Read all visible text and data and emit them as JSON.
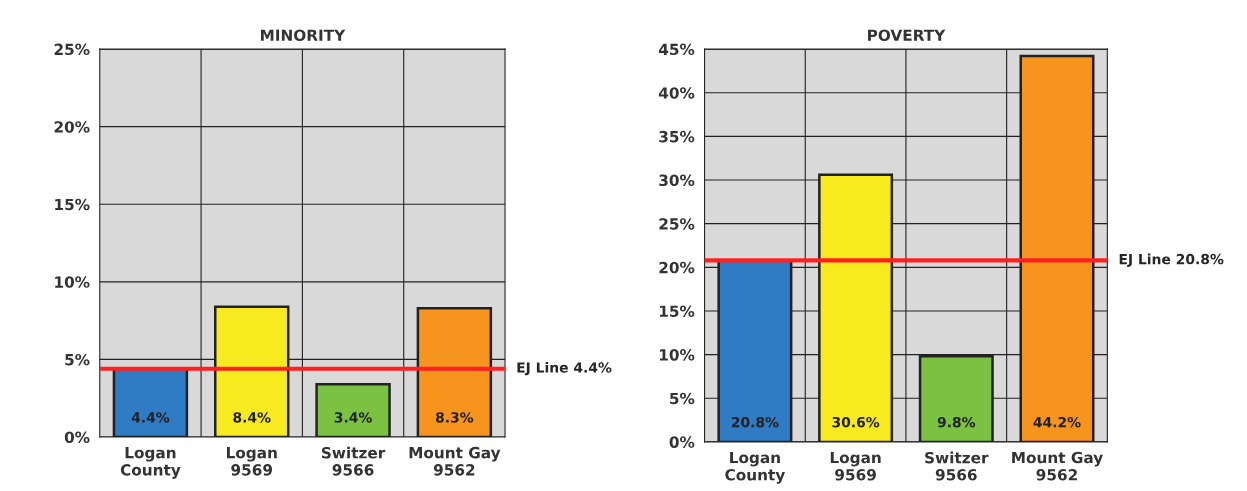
{
  "chart_data": [
    {
      "type": "bar",
      "title": "MINORITY",
      "categories": [
        "Logan\nCounty",
        "Logan\n9569",
        "Switzer\n9566",
        "Mount Gay\n9562"
      ],
      "values": [
        4.4,
        8.4,
        3.4,
        8.3
      ],
      "colors": [
        "#2f7bc4",
        "#f7ea1e",
        "#7cc242",
        "#f7941d"
      ],
      "value_labels": [
        "4.4%",
        "8.4%",
        "3.4%",
        "8.3%"
      ],
      "ylim": [
        0,
        25
      ],
      "yticks": [
        {
          "value": 0,
          "label": "0%"
        },
        {
          "value": 5,
          "label": "5%"
        },
        {
          "value": 10,
          "label": "10%"
        },
        {
          "value": 15,
          "label": "15%"
        },
        {
          "value": 20,
          "label": "20%"
        },
        {
          "value": 25,
          "label": "25%"
        }
      ],
      "grid": "y",
      "ref_lines": [
        {
          "axis": "y",
          "value": 4.4,
          "label": "EJ Line 4.4%",
          "color": "#ff2020"
        }
      ]
    },
    {
      "type": "bar",
      "title": "POVERTY",
      "categories": [
        "Logan\nCounty",
        "Logan\n9569",
        "Switzer\n9566",
        "Mount Gay\n9562"
      ],
      "values": [
        20.8,
        30.6,
        9.8,
        44.2
      ],
      "colors": [
        "#2f7bc4",
        "#f7ea1e",
        "#7cc242",
        "#f7941d"
      ],
      "value_labels": [
        "20.8%",
        "30.6%",
        "9.8%",
        "44.2%"
      ],
      "ylim": [
        0,
        45
      ],
      "yticks": [
        {
          "value": 0,
          "label": "0%"
        },
        {
          "value": 5,
          "label": "5%"
        },
        {
          "value": 10,
          "label": "10%"
        },
        {
          "value": 15,
          "label": "15%"
        },
        {
          "value": 20,
          "label": "20%"
        },
        {
          "value": 25,
          "label": "25%"
        },
        {
          "value": 30,
          "label": "30%"
        },
        {
          "value": 35,
          "label": "35%"
        },
        {
          "value": 40,
          "label": "40%"
        },
        {
          "value": 45,
          "label": "45%"
        }
      ],
      "grid": "y",
      "ref_lines": [
        {
          "axis": "y",
          "value": 20.8,
          "label": "EJ Line 20.8%",
          "color": "#ff2020"
        }
      ]
    }
  ]
}
